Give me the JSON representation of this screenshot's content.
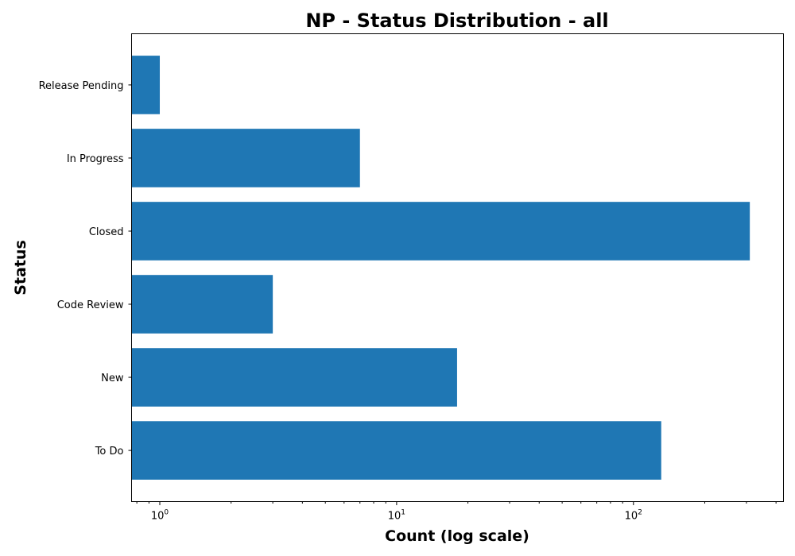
{
  "chart_data": {
    "type": "bar",
    "orientation": "horizontal",
    "title": "NP - Status Distribution - all",
    "xlabel": "Count (log scale)",
    "ylabel": "Status",
    "xscale": "log",
    "xlim": [
      0.76,
      430
    ],
    "x_ticks": [
      {
        "value": 1,
        "base": "10",
        "exp": "0"
      },
      {
        "value": 10,
        "base": "10",
        "exp": "1"
      },
      {
        "value": 100,
        "base": "10",
        "exp": "2"
      }
    ],
    "categories": [
      "Release Pending",
      "In Progress",
      "Closed",
      "Code Review",
      "New",
      "To Do"
    ],
    "values": [
      1,
      7,
      310,
      3,
      18,
      131
    ],
    "bar_color": "#1f77b4",
    "grid": false,
    "legend": "none"
  }
}
